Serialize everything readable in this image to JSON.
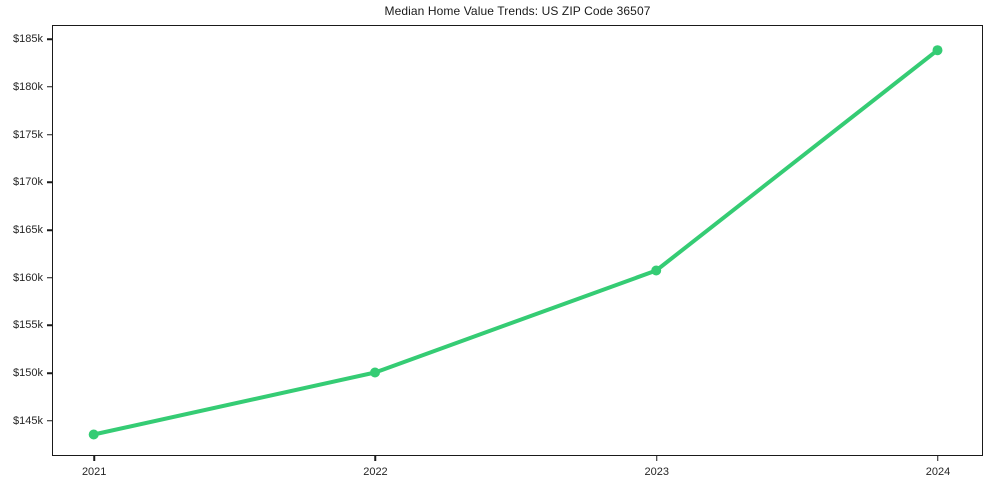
{
  "chart_data": {
    "type": "line",
    "title": "Median Home Value Trends: US ZIP Code 36507",
    "xlabel": "",
    "ylabel": "",
    "x": [
      2021,
      2022,
      2023,
      2024
    ],
    "x_tick_labels": [
      "2021",
      "2022",
      "2023",
      "2024"
    ],
    "series": [
      {
        "name": "median-home-value",
        "values": [
          143500,
          150000,
          160700,
          183800
        ],
        "color": "#35cc74",
        "marker": "circle"
      }
    ],
    "y_tick_values": [
      145000,
      150000,
      155000,
      160000,
      165000,
      170000,
      175000,
      180000,
      185000
    ],
    "y_tick_labels": [
      "$145k",
      "$150k",
      "$155k",
      "$160k",
      "$165k",
      "$170k",
      "$175k",
      "$180k",
      "$185k"
    ],
    "xlim": [
      2020.85,
      2024.16
    ],
    "ylim": [
      141300,
      186500
    ],
    "grid": false,
    "legend_position": "none",
    "colors": {
      "line": "#35cc74",
      "spine": "#1a1a1a",
      "tick_text": "#262626",
      "title_text": "#1a1a1a",
      "background": "#ffffff"
    }
  }
}
